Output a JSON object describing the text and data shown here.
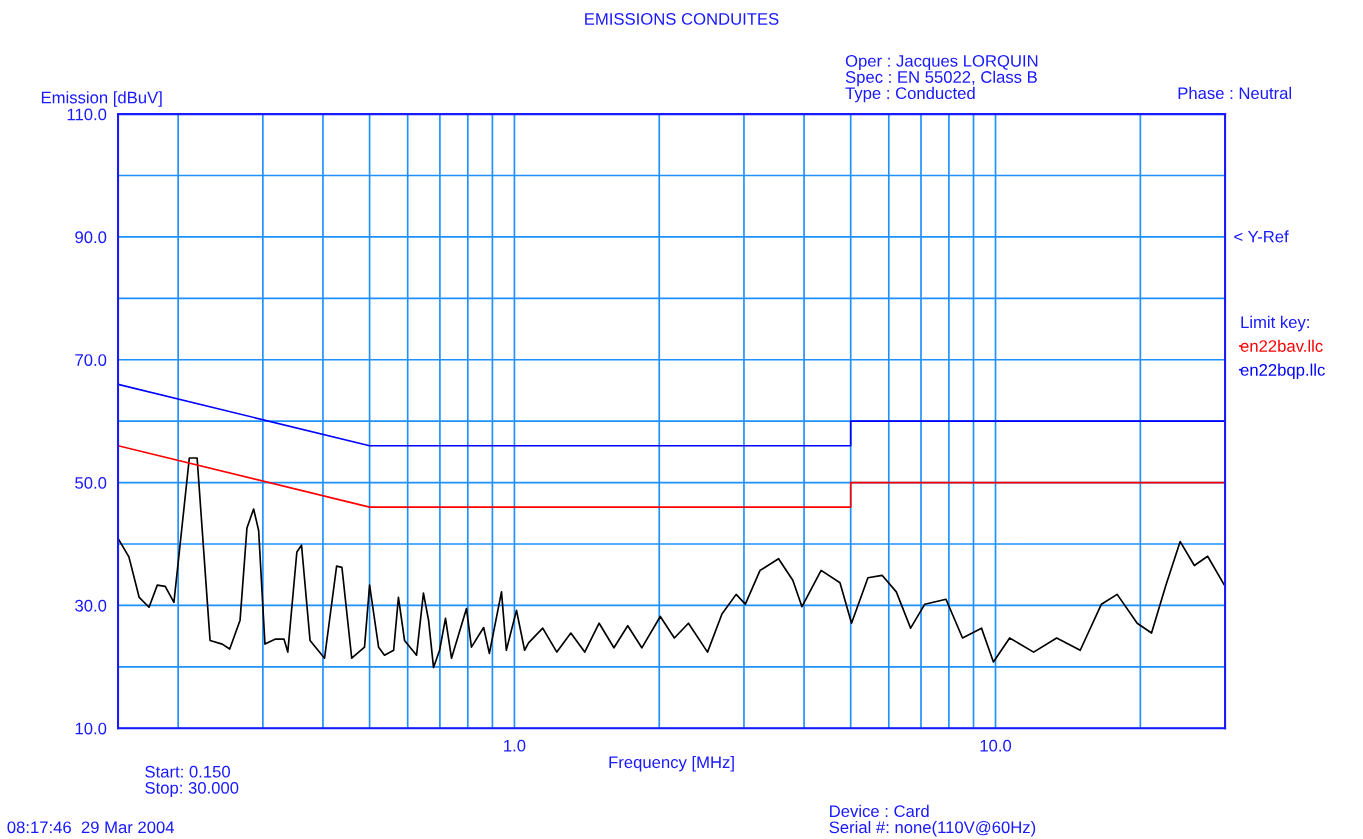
{
  "chart_data": {
    "type": "line",
    "title": "EMISSIONS CONDUITES",
    "xlabel": "Frequency [MHz]",
    "ylabel": "Emission [dBuV]",
    "legend_title": "Limit key:",
    "log": "x",
    "xlim": [
      0.15,
      30
    ],
    "ylim": [
      10,
      110
    ],
    "xticks": [
      {
        "value": 0.2,
        "label": null
      },
      {
        "value": 0.3,
        "label": null
      },
      {
        "value": 0.4,
        "label": null
      },
      {
        "value": 0.5,
        "label": null
      },
      {
        "value": 0.6,
        "label": null
      },
      {
        "value": 0.7,
        "label": null
      },
      {
        "value": 0.8,
        "label": null
      },
      {
        "value": 0.9,
        "label": null
      },
      {
        "value": 1,
        "label": "1.0"
      },
      {
        "value": 2,
        "label": null
      },
      {
        "value": 3,
        "label": null
      },
      {
        "value": 4,
        "label": null
      },
      {
        "value": 5,
        "label": null
      },
      {
        "value": 6,
        "label": null
      },
      {
        "value": 7,
        "label": null
      },
      {
        "value": 8,
        "label": null
      },
      {
        "value": 9,
        "label": null
      },
      {
        "value": 10,
        "label": "10.0"
      },
      {
        "value": 20,
        "label": null
      }
    ],
    "yticks": [
      {
        "value": 10,
        "label": "10.0"
      },
      {
        "value": 20,
        "label": null
      },
      {
        "value": 30,
        "label": "30.0"
      },
      {
        "value": 40,
        "label": null
      },
      {
        "value": 50,
        "label": "50.0"
      },
      {
        "value": 60,
        "label": null
      },
      {
        "value": 70,
        "label": "70.0"
      },
      {
        "value": 80,
        "label": null
      },
      {
        "value": 90,
        "label": "90.0"
      },
      {
        "value": 100,
        "label": null
      },
      {
        "value": 110,
        "label": "110.0"
      }
    ],
    "grid": true,
    "legend": "right",
    "marker": "none",
    "line_style": "solid",
    "series": [
      {
        "color": "#000000",
        "x": [
          0.15,
          0.158,
          0.166,
          0.174,
          0.181,
          0.188,
          0.196,
          0.211,
          0.219,
          0.233,
          0.247,
          0.256,
          0.269,
          0.278,
          0.287,
          0.294,
          0.303,
          0.318,
          0.332,
          0.338,
          0.353,
          0.361,
          0.376,
          0.403,
          0.427,
          0.438,
          0.459,
          0.488,
          0.5,
          0.522,
          0.537,
          0.561,
          0.574,
          0.591,
          0.626,
          0.647,
          0.663,
          0.679,
          0.699,
          0.719,
          0.74,
          0.795,
          0.814,
          0.863,
          0.887,
          0.94,
          0.962,
          1.01,
          1.05,
          1.07,
          1.145,
          1.225,
          1.31,
          1.4,
          1.5,
          1.61,
          1.72,
          1.84,
          2.01,
          2.15,
          2.3,
          2.52,
          2.7,
          2.89,
          3.02,
          3.24,
          3.54,
          3.79,
          3.96,
          4.34,
          4.75,
          5.02,
          5.43,
          5.81,
          6.22,
          6.66,
          7.13,
          7.89,
          8.54,
          9.35,
          9.9,
          10.7,
          12.0,
          13.4,
          15.0,
          16.6,
          17.9,
          19.7,
          21.1,
          22.6,
          24.2,
          25.9,
          27.6,
          29.9
        ],
        "values": [
          40.9,
          37.9,
          31.3,
          29.7,
          33.3,
          33.1,
          30.5,
          54.0,
          54.0,
          24.3,
          23.7,
          22.9,
          27.6,
          42.6,
          45.7,
          42.2,
          23.7,
          24.5,
          24.5,
          22.4,
          38.7,
          39.8,
          24.3,
          21.4,
          36.4,
          36.2,
          21.4,
          23.2,
          33.3,
          23.2,
          21.9,
          22.7,
          31.3,
          24.3,
          21.9,
          32.0,
          27.6,
          19.9,
          22.7,
          27.9,
          21.4,
          29.5,
          23.2,
          26.4,
          22.2,
          32.2,
          22.7,
          29.2,
          22.7,
          23.9,
          26.3,
          22.4,
          25.5,
          22.4,
          27.1,
          23.1,
          26.7,
          23.1,
          28.2,
          24.7,
          27.1,
          22.4,
          28.6,
          31.8,
          30.2,
          35.7,
          37.6,
          34.1,
          29.8,
          35.7,
          33.7,
          27.1,
          34.5,
          34.9,
          32.2,
          26.3,
          30.2,
          31.0,
          24.7,
          26.3,
          20.8,
          24.7,
          22.4,
          24.7,
          22.7,
          30.2,
          31.8,
          27.1,
          25.5,
          33.3,
          40.4,
          36.5,
          38.0,
          33.3
        ]
      },
      {
        "name": "en22bav.llc",
        "color": "#ff0000",
        "x": [
          0.15,
          0.5,
          5,
          5,
          30
        ],
        "values": [
          56,
          46,
          46,
          50,
          50
        ]
      },
      {
        "name": "en22bqp.llc",
        "color": "#0000ff",
        "x": [
          0.15,
          0.5,
          5,
          5,
          30
        ],
        "values": [
          66,
          56,
          56,
          60,
          60
        ]
      }
    ],
    "annotations": [
      "Oper : Jacques LORQUIN\nSpec : EN 55022, Class B\nType : Conducted",
      "Phase : Neutral",
      "Start: 0.150\nStop: 30.000",
      "08:17:46  29 Mar 2004",
      "Device : Card\nSerial #: none(110V@60Hz)",
      "< Y-Ref"
    ]
  }
}
